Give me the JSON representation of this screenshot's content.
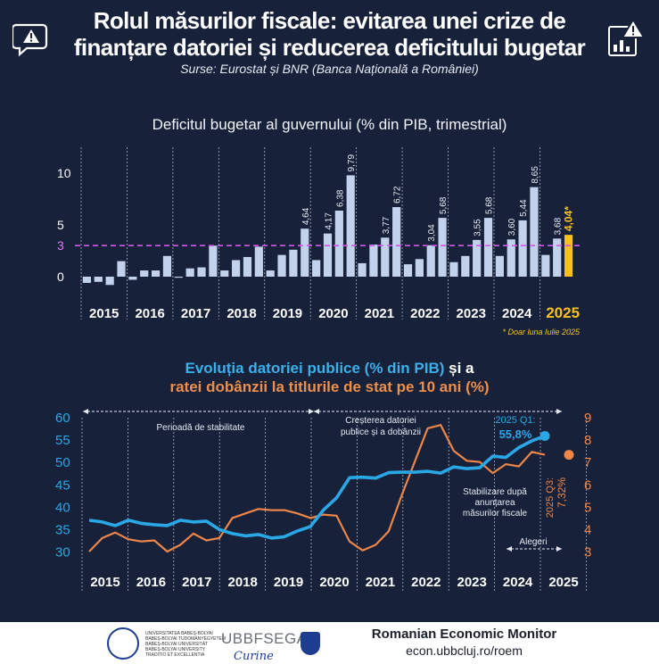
{
  "header": {
    "title_line1": "Rolul măsurilor fiscale: evitarea unei crize de",
    "title_line2": "finanțare  datoriei și reducerea deficitului bugetar",
    "subtitle": "Surse: Eurostat și BNR (Banca Națională a României)",
    "left_icon": "chat-warning-icon",
    "right_icon": "chart-warning-icon"
  },
  "chart1": {
    "title": "Deficitul bugetar al guvernului (% din PIB, trimestrial)",
    "footnote": "* Doar luna Iulie 2025",
    "y_ticks": [
      {
        "value": 10,
        "label": "10"
      },
      {
        "value": 5,
        "label": "5"
      },
      {
        "value": 3,
        "label": "3"
      },
      {
        "value": 0,
        "label": "0"
      }
    ]
  },
  "chart2": {
    "title_blue": "Evoluția datoriei publice (% din PIB)",
    "title_and": " și a",
    "title_orange": "ratei dobânzii la titlurile de stat pe 10 ani (%)",
    "left_ticks": [
      "60",
      "55",
      "50",
      "45",
      "40",
      "35",
      "30"
    ],
    "right_ticks": [
      "9",
      "8",
      "7",
      "6",
      "5",
      "4",
      "3"
    ],
    "annotations": {
      "stability": "Perioadă de stabilitate",
      "growth_line1": "Creșterea datoriei",
      "growth_line2": "publice  și a dobânzii",
      "stab_line1": "Stabilizare după",
      "stab_line2": "anunțarea",
      "stab_line3": "măsurilor fiscale",
      "elections": "Alegeri",
      "debt_label": "2025 Q1:",
      "debt_value": "55,8%",
      "rate_label": "2025 Q3:",
      "rate_value": "7,32%"
    }
  },
  "footer": {
    "institution": "UBBFSEGA",
    "uni_lines": [
      "UNIVERSITATEA BABEȘ-BOLYAI",
      "BABEȘ-BOLYAI TUDOMÁNYEGYETEM",
      "BABEȘ-BOLYAI UNIVERSITÄT",
      "BABEȘ-BOLYAI UNIVERSITY",
      "TRADITIO ET EXCELLENTIA"
    ],
    "monitor": "Romanian Economic Monitor",
    "url": "econ.ubbcluj.ro/roem"
  },
  "chart_data": [
    {
      "type": "bar",
      "title": "Deficitul bugetar al guvernului (% din PIB, trimestrial)",
      "reference_line": 3,
      "ylim": [
        -1,
        10.5
      ],
      "year_labels": [
        "2015",
        "2016",
        "2017",
        "2018",
        "2019",
        "2020",
        "2021",
        "2022",
        "2023",
        "2024",
        "2025"
      ],
      "highlight_year": "2025",
      "values": [
        -0.6,
        -0.5,
        -0.8,
        1.5,
        -0.3,
        0.6,
        0.6,
        2.0,
        -0.1,
        0.8,
        0.9,
        3.0,
        0.6,
        1.6,
        1.9,
        2.9,
        0.6,
        2.1,
        2.6,
        4.64,
        1.6,
        4.17,
        6.38,
        9.79,
        1.3,
        3.1,
        3.77,
        6.72,
        1.2,
        1.7,
        3.04,
        5.68,
        1.4,
        2.0,
        3.55,
        5.68,
        2.0,
        3.6,
        5.44,
        8.65,
        2.1,
        3.68,
        4.04
      ],
      "value_labels": [
        {
          "index": 19,
          "label": "4,64"
        },
        {
          "index": 21,
          "label": "4,17"
        },
        {
          "index": 22,
          "label": "6,38"
        },
        {
          "index": 23,
          "label": "9,79"
        },
        {
          "index": 26,
          "label": "3,77"
        },
        {
          "index": 27,
          "label": "6,72"
        },
        {
          "index": 30,
          "label": "3,04"
        },
        {
          "index": 31,
          "label": "5,68"
        },
        {
          "index": 34,
          "label": "3,55"
        },
        {
          "index": 35,
          "label": "5,68"
        },
        {
          "index": 37,
          "label": "3,60"
        },
        {
          "index": 38,
          "label": "5,44"
        },
        {
          "index": 39,
          "label": "8,65"
        },
        {
          "index": 41,
          "label": "3,68"
        },
        {
          "index": 42,
          "label": "4,04*"
        }
      ],
      "colors": {
        "bar": "#c2d2ec",
        "highlight": "#f6c11d",
        "ref_line": "#d455e8"
      }
    },
    {
      "type": "line",
      "x_labels": [
        "2015",
        "2016",
        "2017",
        "2018",
        "2019",
        "2020",
        "2021",
        "2022",
        "2023",
        "2024",
        "2025"
      ],
      "series": [
        {
          "name": "Evoluția datoriei publice (% din PIB)",
          "axis": "left",
          "ylim": [
            28,
            62
          ],
          "color": "#2aa8e6",
          "values": [
            37,
            36.6,
            35.8,
            37,
            36.3,
            36,
            35.8,
            37,
            36.6,
            36.8,
            34.9,
            34,
            33.5,
            33.8,
            33,
            33.3,
            34.6,
            35.6,
            39.3,
            42,
            46.5,
            46.6,
            46.4,
            47.6,
            47.7,
            47.7,
            47.9,
            47.5,
            48.9,
            48.5,
            48.7,
            51.3,
            51,
            53.2,
            54.7,
            55.8
          ]
        },
        {
          "name": "ratei dobânzii la titlurile de stat pe 10 ani (%)",
          "axis": "right",
          "ylim": [
            2.5,
            9.4
          ],
          "color": "#ee8649",
          "values": [
            3.0,
            3.6,
            3.85,
            3.55,
            3.45,
            3.5,
            3.0,
            3.3,
            3.8,
            3.5,
            3.6,
            4.5,
            4.7,
            4.9,
            4.85,
            4.85,
            4.7,
            4.5,
            4.65,
            4.6,
            3.45,
            3.05,
            3.3,
            3.9,
            5.5,
            7.0,
            8.5,
            8.65,
            7.5,
            7.05,
            7.0,
            6.5,
            6.9,
            6.8,
            7.45,
            7.32
          ]
        }
      ]
    }
  ]
}
